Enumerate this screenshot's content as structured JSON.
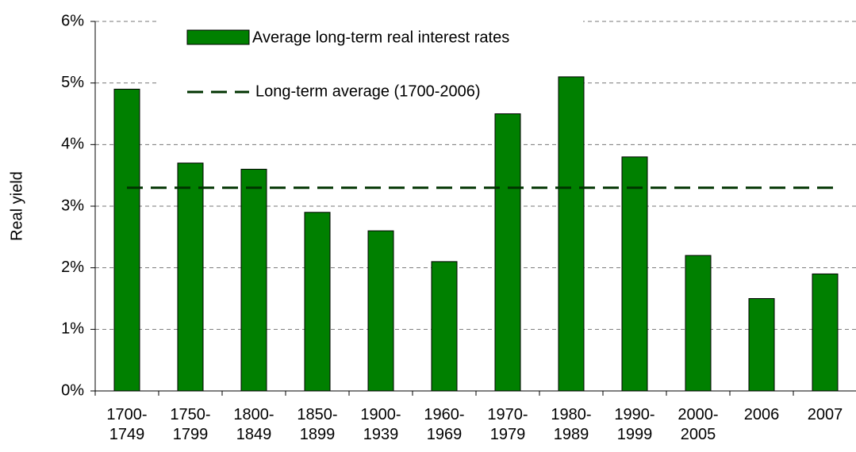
{
  "chart_data": {
    "type": "bar",
    "y_label": "Real yield",
    "categories": [
      "1700-1749",
      "1750-1799",
      "1800-1849",
      "1850-1899",
      "1900-1939",
      "1960-1969",
      "1970-1979",
      "1980-1989",
      "1990-1999",
      "2000-2005",
      "2006",
      "2007"
    ],
    "series": [
      {
        "name": "Average long-term real interest rates",
        "color": "#008000",
        "values": [
          4.9,
          3.7,
          3.6,
          2.9,
          2.6,
          2.1,
          4.5,
          5.1,
          3.8,
          2.2,
          1.5,
          1.9
        ]
      }
    ],
    "average": {
      "name": "Long-term average (1700-2006)",
      "color": "#003300",
      "value": 3.3
    },
    "ylim": [
      0,
      6
    ],
    "yticks": [
      {
        "value": 0,
        "label": "0%"
      },
      {
        "value": 1,
        "label": "1%"
      },
      {
        "value": 2,
        "label": "2%"
      },
      {
        "value": 3,
        "label": "3%"
      },
      {
        "value": 4,
        "label": "4%"
      },
      {
        "value": 5,
        "label": "5%"
      },
      {
        "value": 6,
        "label": "6%"
      }
    ],
    "grid": true
  }
}
